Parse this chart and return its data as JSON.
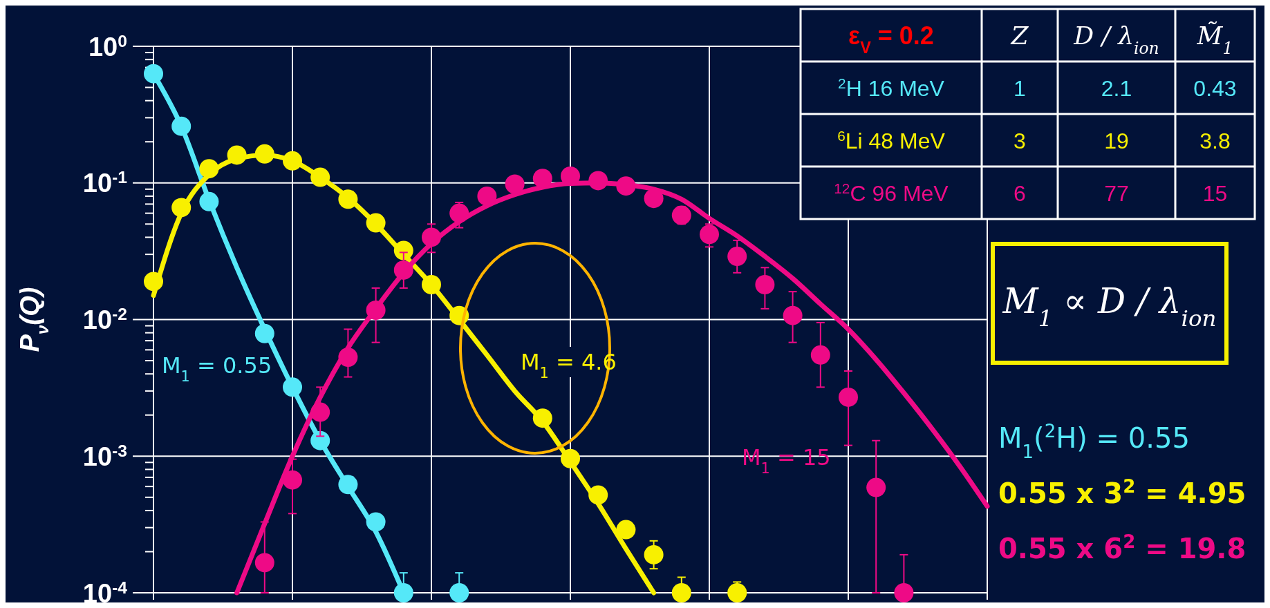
{
  "chart_data": [
    {
      "type": "scatter",
      "ylabel": "P$_{ν}$(Q)",
      "log": "y",
      "grid": true,
      "marker": "circle",
      "tick_labels": "y",
      "categories": [
        null,
        null,
        null,
        null,
        null,
        null,
        null,
        null,
        null,
        null,
        null,
        null,
        null,
        null,
        null,
        null,
        null,
        null,
        null,
        null,
        null,
        null,
        null,
        null,
        null,
        null,
        null,
        null,
        null,
        null,
        null
      ],
      "ylim": [
        0.0001,
        1
      ],
      "yticks": [
        {
          "value": 0.0001,
          "label": "10$^{-4}$"
        },
        {
          "value": 0.001,
          "label": "10$^{-3}$"
        },
        {
          "value": 0.01,
          "label": "10$^{-2}$"
        },
        {
          "value": 0.1,
          "label": "10$^{-1}$"
        },
        {
          "value": 1,
          "label": "10$^{0}$"
        }
      ],
      "series": [
        {
          "type": "line",
          "marker": "none",
          "color": "#55e8f8",
          "values": [
            0.63,
            0.26,
            0.075,
            0.024,
            0.0085,
            0.0032,
            0.0013,
            0.0006,
            0.00028,
            0.0001,
            null,
            null,
            null,
            null,
            null,
            null,
            null,
            null,
            null,
            null,
            null,
            null,
            null,
            null,
            null,
            null,
            null,
            null,
            null,
            null,
            null
          ]
        },
        {
          "type": "line",
          "marker": "none",
          "color": "#f8f000",
          "values": [
            0.015,
            0.06,
            0.115,
            0.15,
            0.16,
            0.145,
            0.11,
            0.078,
            0.05,
            0.03,
            0.018,
            0.01,
            0.0055,
            0.003,
            0.0018,
            0.00091,
            0.00045,
            0.00021,
            0.0001,
            null,
            null,
            null,
            null,
            null,
            null,
            null,
            null,
            null,
            null,
            null,
            null
          ]
        },
        {
          "type": "line",
          "marker": "none",
          "color": "#ee0a86",
          "values": [
            null,
            null,
            null,
            0.0001,
            0.00032,
            0.001,
            0.0027,
            0.0062,
            0.012,
            0.022,
            0.036,
            0.052,
            0.068,
            0.082,
            0.093,
            0.099,
            0.1,
            0.097,
            0.09,
            0.076,
            0.055,
            0.041,
            0.029,
            0.02,
            0.013,
            0.0085,
            0.0051,
            0.0029,
            0.0016,
            0.00085,
            0.00043
          ]
        },
        {
          "color": "#55e8f8",
          "values": [
            0.63,
            0.26,
            0.073,
            null,
            0.0079,
            0.0032,
            0.0013,
            0.00062,
            0.00033,
            0.0001,
            null,
            0.0001,
            null,
            null,
            null,
            null,
            null,
            null,
            null,
            null,
            null,
            null,
            null,
            null,
            null,
            null,
            null,
            null,
            null,
            null,
            null
          ],
          "errors": [
            null,
            null,
            null,
            null,
            null,
            null,
            null,
            null,
            null,
            [
              0.0001,
              0.00014
            ],
            null,
            [
              0.0001,
              0.00014
            ],
            null,
            null,
            null,
            null,
            null,
            null,
            null,
            null,
            null,
            null,
            null,
            null,
            null,
            null,
            null,
            null,
            null,
            null,
            null
          ]
        },
        {
          "color": "#f8f000",
          "values": [
            0.019,
            0.066,
            0.127,
            0.16,
            0.163,
            0.145,
            0.11,
            0.076,
            0.051,
            0.032,
            0.018,
            0.0107,
            null,
            null,
            0.0019,
            0.00096,
            0.00052,
            0.00029,
            0.00019,
            0.0001,
            null,
            0.0001,
            null,
            null,
            null,
            null,
            null,
            null,
            null,
            null,
            null
          ],
          "errors": [
            null,
            null,
            null,
            null,
            null,
            null,
            null,
            null,
            null,
            null,
            null,
            null,
            null,
            null,
            null,
            null,
            null,
            null,
            [
              0.00015,
              0.00024
            ],
            [
              0.0001,
              0.00013
            ],
            null,
            [
              0.0001,
              0.00012
            ],
            null,
            null,
            null,
            null,
            null,
            null,
            null,
            null,
            null
          ]
        },
        {
          "color": "#ee0a86",
          "values": [
            null,
            null,
            null,
            null,
            0.000166,
            0.00067,
            0.0021,
            0.0053,
            0.0117,
            0.023,
            0.04,
            0.06,
            0.08,
            0.098,
            0.108,
            0.112,
            0.104,
            0.095,
            0.077,
            0.058,
            0.042,
            0.029,
            0.018,
            0.0107,
            0.0055,
            0.0027,
            0.00059,
            0.0001,
            null,
            null,
            null
          ],
          "errors": [
            null,
            null,
            null,
            null,
            [
              0.0001,
              0.00033
            ],
            [
              0.00038,
              0.00095
            ],
            [
              0.0014,
              0.0032
            ],
            [
              0.0038,
              0.0085
            ],
            [
              0.0068,
              0.017
            ],
            [
              0.017,
              0.031
            ],
            [
              0.031,
              0.05
            ],
            [
              0.047,
              0.072
            ],
            null,
            null,
            null,
            null,
            null,
            null,
            null,
            [
              0.05,
              0.067
            ],
            [
              0.034,
              0.05
            ],
            [
              0.022,
              0.038
            ],
            [
              0.012,
              0.024
            ],
            [
              0.0068,
              0.016
            ],
            [
              0.0032,
              0.0095
            ],
            [
              0.0012,
              0.0042
            ],
            [
              0.0001,
              0.0013
            ],
            [
              0.0001,
              0.00019
            ],
            null,
            null,
            null
          ]
        }
      ],
      "annotations": [
        "M$_{1}$ = 0.55",
        "M$_{1}$ = 4.6",
        "M$_{1}$ = 15",
        "M$_{1}$ ∝ D / λ$_{ion}$",
        "M$_{1}$($^{2}$H) = 0.55",
        "0.55 x 3$^{2}$ = 4.95",
        "0.55 x 6$^{2}$ = 19.8"
      ]
    },
    {
      "type": "other",
      "annotations": [
        "ε$_{V}$ = 0.2",
        "Z",
        "D / λ$_{ion}$",
        "M̃$_{1}$",
        "$^{2}$H 16 MeV",
        "1",
        "2.1",
        "0.43",
        "$^{6}$Li 48 MeV",
        "3",
        "19",
        "3.8",
        "$^{12}$C 96 MeV",
        "6",
        "77",
        "15"
      ]
    }
  ]
}
